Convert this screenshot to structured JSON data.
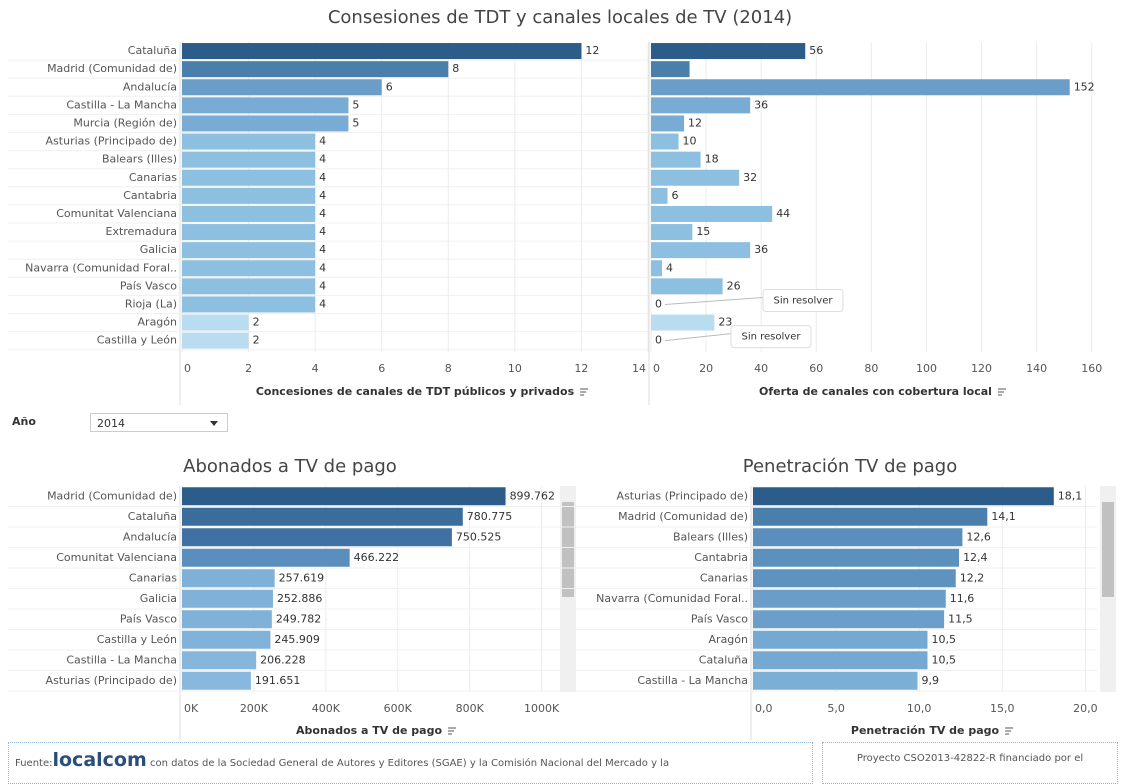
{
  "title": "Consesiones de TDT y canales locales de TV (2014)",
  "chart_data": [
    {
      "type": "bar",
      "orientation": "horizontal",
      "grid": true,
      "categories": [
        "Cataluña",
        "Madrid (Comunidad de)",
        "Andalucía",
        "Castilla - La Mancha",
        "Murcia (Región de)",
        "Asturias (Principado de)",
        "Balears (Illes)",
        "Canarias",
        "Cantabria",
        "Comunitat Valenciana",
        "Extremadura",
        "Galicia",
        "Navarra (Comunidad Foral..",
        "País Vasco",
        "Rioja (La)",
        "Aragón",
        "Castilla y León"
      ],
      "colors": [
        "#2c5d8a",
        "#4a7eab",
        "#6a9dc8",
        "#78acd4",
        "#78acd4",
        "#8dbfe0",
        "#8dbfe0",
        "#8dbfe0",
        "#8dbfe0",
        "#8dbfe0",
        "#8dbfe0",
        "#8dbfe0",
        "#8dbfe0",
        "#8dbfe0",
        "#8dbfe0",
        "#b9dcf0",
        "#b9dcf0"
      ],
      "series": [
        {
          "name": "Concesiones de canales de TDT públicos y privados",
          "values": [
            12,
            8,
            6,
            5,
            5,
            4,
            4,
            4,
            4,
            4,
            4,
            4,
            4,
            4,
            4,
            2,
            2
          ],
          "xlim": [
            0,
            14
          ],
          "xticks": [
            0,
            2,
            4,
            6,
            8,
            10,
            12,
            14
          ]
        },
        {
          "name": "Oferta de canales con cobertura local",
          "values": [
            56,
            14,
            152,
            36,
            12,
            10,
            18,
            32,
            6,
            44,
            15,
            36,
            4,
            26,
            0,
            23,
            0
          ],
          "value_labels": [
            "56",
            null,
            "152",
            "36",
            "12",
            "10",
            "18",
            "32",
            "6",
            "44",
            "15",
            "36",
            "4",
            "26",
            "0",
            "23",
            "0"
          ],
          "xlim": [
            0,
            163
          ],
          "xticks": [
            0,
            20,
            40,
            60,
            80,
            100,
            120,
            140,
            160
          ],
          "annotations": [
            "Sin resolver",
            "Sin resolver"
          ]
        }
      ]
    },
    {
      "type": "bar",
      "orientation": "horizontal",
      "grid": true,
      "title": "Abonados a TV de pago",
      "xlabel": "Abonados  a TV de pago",
      "categories": [
        "Madrid (Comunidad de)",
        "Cataluña",
        "Andalucía",
        "Comunitat Valenciana",
        "Canarias",
        "Galicia",
        "País Vasco",
        "Castilla y León",
        "Castilla - La Mancha",
        "Asturias (Principado de)"
      ],
      "values": [
        899762,
        780775,
        750525,
        466222,
        257619,
        252886,
        249782,
        245909,
        206228,
        191651
      ],
      "value_labels": [
        "899.762",
        "780.775",
        "750.525",
        "466.222",
        "257.619",
        "252.886",
        "249.782",
        "245.909",
        "206.228",
        "191.651"
      ],
      "colors": [
        "#2c5d8a",
        "#3a6c9c",
        "#3f72a2",
        "#5a8fbd",
        "#7fb0d8",
        "#80b1d8",
        "#80b1d8",
        "#81b2d9",
        "#86b6dc",
        "#88b8dd"
      ],
      "xlim": [
        0,
        1040000
      ],
      "xticks": [
        {
          "value": 0,
          "label": "0K"
        },
        {
          "value": 200000,
          "label": "200K"
        },
        {
          "value": 400000,
          "label": "400K"
        },
        {
          "value": 600000,
          "label": "600K"
        },
        {
          "value": 800000,
          "label": "800K"
        },
        {
          "value": 1000000,
          "label": "1000K"
        }
      ]
    },
    {
      "type": "bar",
      "orientation": "horizontal",
      "grid": true,
      "title": "Penetración TV de pago",
      "xlabel": "Penetración TV de pago",
      "categories": [
        "Asturias (Principado de)",
        "Madrid (Comunidad de)",
        "Balears (Illes)",
        "Cantabria",
        "Canarias",
        "Navarra (Comunidad Foral..",
        "País Vasco",
        "Aragón",
        "Cataluña",
        "Castilla - La Mancha"
      ],
      "values": [
        18.1,
        14.1,
        12.6,
        12.4,
        12.2,
        11.6,
        11.5,
        10.5,
        10.5,
        9.9
      ],
      "value_labels": [
        "18,1",
        "14,1",
        "12,6",
        "12,4",
        "12,2",
        "11,6",
        "11,5",
        "10,5",
        "10,5",
        "9,9"
      ],
      "colors": [
        "#2c5d8a",
        "#4a7eab",
        "#5a8fbd",
        "#5c91be",
        "#5e93c0",
        "#6a9dc8",
        "#6b9ec8",
        "#76a9d2",
        "#76a9d2",
        "#7cafd6"
      ],
      "xlim": [
        0,
        20.7
      ],
      "xticks": [
        {
          "value": 0,
          "label": "0,0"
        },
        {
          "value": 5,
          "label": "5,0"
        },
        {
          "value": 10,
          "label": "10,0"
        },
        {
          "value": 15,
          "label": "15,0"
        },
        {
          "value": 20,
          "label": "20,0"
        }
      ]
    }
  ],
  "filter": {
    "label": "Año",
    "value": "2014"
  },
  "footer": {
    "prefix": "Fuente:",
    "brand": "localcom",
    "source": "con datos de la Sociedad General de Autores y Editores (SGAE)  y la Comisión Nacional del Mercado y la",
    "project": "Proyecto CSO2013-42822-R financiado por el"
  }
}
